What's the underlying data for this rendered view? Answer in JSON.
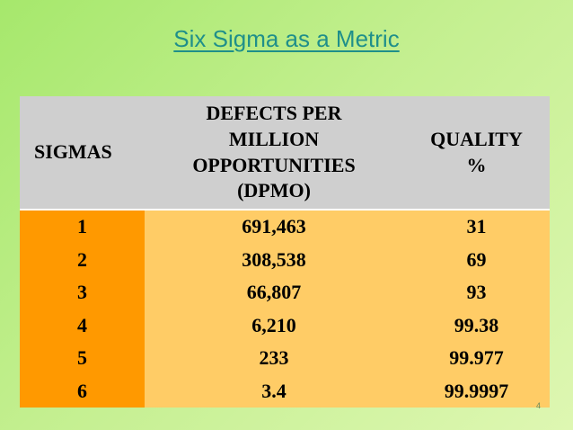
{
  "title": "Six Sigma as a Metric",
  "table": {
    "headers": {
      "sigmas": "SIGMAS",
      "dpmo_lines": [
        "DEFECTS PER",
        "MILLION",
        "OPPORTUNITIES",
        "(DPMO)"
      ],
      "quality_lines": [
        "QUALITY",
        "%"
      ]
    },
    "rows": [
      {
        "sigma": "1",
        "dpmo": "691,463",
        "quality": "31"
      },
      {
        "sigma": "2",
        "dpmo": "308,538",
        "quality": "69"
      },
      {
        "sigma": "3",
        "dpmo": "66,807",
        "quality": "93"
      },
      {
        "sigma": "4",
        "dpmo": "6,210",
        "quality": "99.38"
      },
      {
        "sigma": "5",
        "dpmo": "233",
        "quality": "99.977"
      },
      {
        "sigma": "6",
        "dpmo": "3.4",
        "quality": "99.9997"
      }
    ]
  },
  "page_number": "4",
  "colors": {
    "title": "#1f8f8a",
    "header_bg": "#cfcfcf",
    "sigma_col_bg": "#ff9900",
    "value_col_bg": "#ffcc66"
  }
}
